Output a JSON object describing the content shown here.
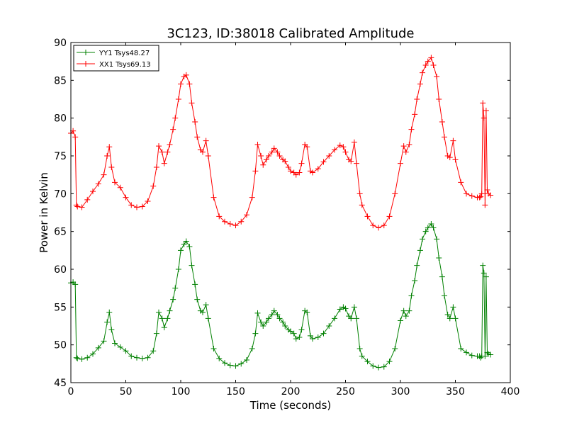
{
  "chart_data": {
    "type": "line",
    "title": "3C123, ID:38018 Calibrated Amplitude",
    "xlabel": "Time (seconds)",
    "ylabel": "Power in Kelvin",
    "xlim": [
      0,
      400
    ],
    "ylim": [
      45,
      90
    ],
    "xticks": [
      "0",
      "50",
      "100",
      "150",
      "200",
      "250",
      "300",
      "350",
      "400"
    ],
    "yticks": [
      "45",
      "50",
      "55",
      "60",
      "65",
      "70",
      "75",
      "80",
      "85",
      "90"
    ],
    "grid": false,
    "legend_position": "top-left",
    "marker": "+",
    "series": [
      {
        "name": "YY1 Tsys48.27",
        "color": "#008000",
        "x": [
          0,
          2,
          4,
          5,
          6,
          10,
          15,
          20,
          25,
          30,
          33,
          35,
          37,
          40,
          45,
          50,
          55,
          60,
          65,
          70,
          75,
          78,
          80,
          83,
          85,
          88,
          90,
          93,
          95,
          98,
          100,
          103,
          105,
          108,
          110,
          113,
          115,
          118,
          120,
          123,
          125,
          130,
          135,
          140,
          145,
          150,
          155,
          160,
          165,
          168,
          170,
          173,
          175,
          178,
          180,
          183,
          185,
          188,
          190,
          193,
          195,
          198,
          200,
          203,
          205,
          208,
          210,
          213,
          215,
          218,
          220,
          225,
          230,
          235,
          240,
          245,
          248,
          250,
          253,
          255,
          258,
          260,
          263,
          265,
          270,
          275,
          280,
          285,
          290,
          295,
          300,
          303,
          305,
          308,
          310,
          313,
          315,
          318,
          320,
          323,
          325,
          328,
          330,
          333,
          335,
          338,
          340,
          343,
          345,
          348,
          350,
          355,
          360,
          365,
          370,
          372,
          373,
          374,
          375,
          376,
          377,
          378,
          379,
          380,
          382
        ],
        "values": [
          58.2,
          58.3,
          58,
          48.3,
          48.2,
          48.1,
          48.3,
          48.8,
          49.6,
          50.5,
          53,
          54.3,
          52,
          50.2,
          49.7,
          49.2,
          48.5,
          48.3,
          48.2,
          48.3,
          49.2,
          51.5,
          54.3,
          53.5,
          52.3,
          53.5,
          54.5,
          56,
          57.5,
          60,
          62.5,
          63.3,
          63.7,
          63,
          60.5,
          58,
          56,
          54.5,
          54.3,
          55.3,
          53.5,
          49.5,
          48.2,
          47.6,
          47.3,
          47.2,
          47.5,
          48,
          49.5,
          51.5,
          54.2,
          53,
          52.5,
          53,
          53.5,
          54,
          54.5,
          54,
          53.5,
          53,
          52.5,
          52,
          51.8,
          51.5,
          50.8,
          51,
          52,
          54.5,
          54.3,
          51.2,
          50.8,
          51,
          51.5,
          52.5,
          53.5,
          54.7,
          55,
          54.8,
          53.8,
          53.5,
          55,
          53.5,
          49.5,
          48.5,
          47.8,
          47.2,
          47,
          47.1,
          47.8,
          49.5,
          53.2,
          54.5,
          53.8,
          54.5,
          56.5,
          58.5,
          60.5,
          62.5,
          64,
          65,
          65.5,
          66,
          65.5,
          64,
          61.5,
          59,
          56.5,
          54,
          53.5,
          55,
          53.5,
          49.5,
          49,
          48.6,
          48.5,
          48.5,
          48.3,
          48.5,
          60.5,
          59.5,
          48.5,
          59,
          49,
          48.8,
          48.7
        ]
      },
      {
        "name": "XX1 Tsys69.13",
        "color": "#ff0000",
        "x": [
          0,
          2,
          4,
          5,
          6,
          10,
          15,
          20,
          25,
          30,
          33,
          35,
          37,
          40,
          45,
          50,
          55,
          60,
          65,
          70,
          75,
          78,
          80,
          83,
          85,
          88,
          90,
          93,
          95,
          98,
          100,
          103,
          105,
          108,
          110,
          113,
          115,
          118,
          120,
          123,
          125,
          130,
          135,
          140,
          145,
          150,
          155,
          160,
          165,
          168,
          170,
          173,
          175,
          178,
          180,
          183,
          185,
          188,
          190,
          193,
          195,
          198,
          200,
          203,
          205,
          208,
          210,
          213,
          215,
          218,
          220,
          225,
          230,
          235,
          240,
          245,
          248,
          250,
          253,
          255,
          258,
          260,
          263,
          265,
          270,
          275,
          280,
          285,
          290,
          295,
          300,
          303,
          305,
          308,
          310,
          313,
          315,
          318,
          320,
          323,
          325,
          328,
          330,
          333,
          335,
          338,
          340,
          343,
          345,
          348,
          350,
          355,
          360,
          365,
          370,
          372,
          373,
          374,
          375,
          376,
          377,
          378,
          379,
          380,
          382
        ],
        "values": [
          78,
          78.3,
          77.5,
          68.5,
          68.3,
          68.2,
          69.2,
          70.3,
          71.3,
          72.5,
          75,
          76.2,
          73.5,
          71.5,
          70.8,
          69.5,
          68.5,
          68.2,
          68.3,
          69,
          71,
          73.5,
          76.3,
          75.5,
          74,
          75.5,
          76.5,
          78.5,
          80,
          82.5,
          84.5,
          85.5,
          85.7,
          84.5,
          82,
          79.5,
          77.5,
          75.8,
          75.5,
          77,
          75,
          69.5,
          67,
          66.3,
          66,
          65.8,
          66.3,
          67.2,
          69.5,
          73,
          76.5,
          75,
          73.8,
          74.5,
          75,
          75.5,
          76,
          75.5,
          75,
          74.5,
          74.3,
          73.5,
          73,
          72.8,
          72.5,
          72.8,
          74,
          76.5,
          76.2,
          73,
          72.8,
          73.3,
          74.2,
          75,
          75.8,
          76.4,
          76.2,
          75.5,
          74.5,
          74.3,
          76.8,
          74,
          70,
          68.5,
          67,
          65.8,
          65.5,
          65.8,
          67,
          70,
          74,
          76.3,
          75.5,
          76.5,
          78.5,
          80.5,
          82.5,
          84.5,
          86,
          87,
          87.5,
          88,
          87,
          85.5,
          82.5,
          79.5,
          77.5,
          75,
          74.8,
          77,
          74.5,
          71.5,
          70,
          69.7,
          69.5,
          69.5,
          69.6,
          70,
          82,
          80,
          68.5,
          81,
          70.5,
          70,
          69.8
        ]
      }
    ]
  }
}
